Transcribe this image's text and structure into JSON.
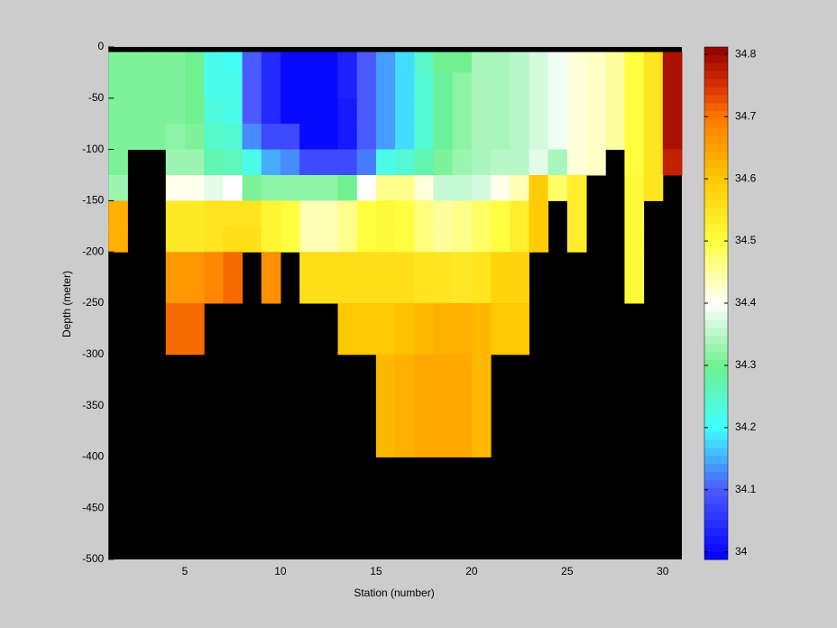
{
  "chart_data": {
    "type": "heatmap",
    "xlabel": "Station (number)",
    "ylabel": "Depth (meter)",
    "xlim": [
      1,
      31
    ],
    "xticks": [
      5,
      10,
      15,
      20,
      25,
      30
    ],
    "ylim": [
      -500,
      0
    ],
    "yticks": [
      -500,
      -450,
      -400,
      -350,
      -300,
      -250,
      -200,
      -150,
      -100,
      -50,
      0
    ],
    "x_edges": [
      1,
      2,
      3,
      4,
      5,
      6,
      7,
      8,
      9,
      10,
      11,
      12,
      13,
      14,
      15,
      16,
      17,
      18,
      19,
      20,
      21,
      22,
      23,
      24,
      25,
      26,
      27,
      28,
      29,
      30,
      31
    ],
    "y_edges": [
      -5,
      -25,
      -50,
      -75,
      -100,
      -125,
      -150,
      -175,
      -200,
      -250,
      -300,
      -350,
      -400,
      -450,
      -500
    ],
    "z": [
      [
        34.31,
        34.31,
        34.31,
        34.31,
        34.3,
        34.22,
        34.21,
        34.1,
        34.04,
        34.0,
        34.0,
        34.0,
        34.03,
        34.1,
        34.14,
        34.18,
        34.25,
        34.3,
        34.3,
        34.34,
        34.34,
        34.35,
        34.37,
        34.39,
        34.42,
        34.43,
        34.45,
        34.5,
        34.55,
        34.79
      ],
      [
        34.31,
        34.31,
        34.31,
        34.31,
        34.3,
        34.22,
        34.22,
        34.1,
        34.04,
        34.0,
        34.0,
        34.0,
        34.03,
        34.1,
        34.14,
        34.18,
        34.24,
        34.29,
        34.32,
        34.34,
        34.34,
        34.35,
        34.37,
        34.39,
        34.42,
        34.43,
        34.45,
        34.5,
        34.55,
        34.79
      ],
      [
        34.31,
        34.31,
        34.31,
        34.31,
        34.3,
        34.23,
        34.22,
        34.1,
        34.04,
        34.0,
        34.0,
        34.0,
        34.02,
        34.1,
        34.14,
        34.18,
        34.24,
        34.29,
        34.32,
        34.34,
        34.34,
        34.35,
        34.37,
        34.39,
        34.42,
        34.43,
        34.45,
        34.5,
        34.55,
        34.79
      ],
      [
        34.31,
        34.31,
        34.31,
        34.32,
        34.31,
        34.25,
        34.24,
        34.13,
        34.08,
        34.08,
        34.0,
        34.0,
        34.02,
        34.1,
        34.14,
        34.18,
        34.24,
        34.29,
        34.32,
        34.34,
        34.34,
        34.35,
        34.37,
        34.39,
        34.42,
        34.43,
        34.45,
        34.5,
        34.55,
        34.79
      ],
      [
        34.31,
        null,
        null,
        34.33,
        34.33,
        34.27,
        34.26,
        34.22,
        34.15,
        34.13,
        34.08,
        34.08,
        34.08,
        34.12,
        34.22,
        34.24,
        34.27,
        34.31,
        34.33,
        34.34,
        34.35,
        34.35,
        34.38,
        34.34,
        34.42,
        34.43,
        null,
        34.5,
        34.55,
        34.77
      ],
      [
        34.33,
        null,
        null,
        34.41,
        34.41,
        34.38,
        34.4,
        34.31,
        34.32,
        34.32,
        34.32,
        34.32,
        34.3,
        34.4,
        34.46,
        34.46,
        34.42,
        34.36,
        34.36,
        34.37,
        34.41,
        34.44,
        34.59,
        34.48,
        34.53,
        null,
        null,
        34.51,
        34.55,
        null
      ],
      [
        34.63,
        null,
        null,
        34.54,
        34.54,
        34.55,
        34.55,
        34.55,
        34.52,
        34.5,
        34.44,
        34.44,
        34.46,
        34.5,
        34.51,
        34.5,
        34.47,
        34.45,
        34.46,
        34.48,
        34.5,
        34.53,
        34.59,
        null,
        34.53,
        null,
        null,
        34.51,
        null,
        null
      ],
      [
        34.63,
        null,
        null,
        34.54,
        34.54,
        34.55,
        34.56,
        34.56,
        34.52,
        34.5,
        34.44,
        34.44,
        34.46,
        34.5,
        34.51,
        34.5,
        34.47,
        34.45,
        34.46,
        34.48,
        34.5,
        34.53,
        34.59,
        null,
        34.53,
        null,
        null,
        34.51,
        null,
        null
      ],
      [
        null,
        null,
        null,
        34.66,
        34.66,
        34.68,
        34.71,
        null,
        34.67,
        null,
        34.56,
        34.56,
        34.56,
        34.56,
        34.56,
        34.56,
        34.55,
        34.55,
        34.54,
        34.55,
        34.58,
        34.58,
        null,
        null,
        null,
        null,
        null,
        34.51,
        null,
        null
      ],
      [
        null,
        null,
        null,
        34.71,
        34.71,
        null,
        null,
        null,
        null,
        null,
        null,
        null,
        34.6,
        34.6,
        34.6,
        34.61,
        34.62,
        34.63,
        34.63,
        34.62,
        34.6,
        34.6,
        null,
        null,
        null,
        null,
        null,
        null,
        null,
        null
      ],
      [
        null,
        null,
        null,
        null,
        null,
        null,
        null,
        null,
        null,
        null,
        null,
        null,
        null,
        null,
        34.62,
        34.63,
        34.64,
        34.64,
        34.64,
        34.62,
        null,
        null,
        null,
        null,
        null,
        null,
        null,
        null,
        null,
        null
      ],
      [
        null,
        null,
        null,
        null,
        null,
        null,
        null,
        null,
        null,
        null,
        null,
        null,
        null,
        null,
        34.62,
        34.63,
        34.64,
        34.64,
        34.64,
        34.62,
        null,
        null,
        null,
        null,
        null,
        null,
        null,
        null,
        null,
        null
      ],
      [
        null,
        null,
        null,
        null,
        null,
        null,
        null,
        null,
        null,
        null,
        null,
        null,
        null,
        null,
        null,
        null,
        null,
        null,
        null,
        null,
        null,
        null,
        null,
        null,
        null,
        null,
        null,
        null,
        null,
        null
      ],
      [
        null,
        null,
        null,
        null,
        null,
        null,
        null,
        null,
        null,
        null,
        null,
        null,
        null,
        null,
        null,
        null,
        null,
        null,
        null,
        null,
        null,
        null,
        null,
        null,
        null,
        null,
        null,
        null,
        null,
        null
      ]
    ],
    "missing_color": "#000000",
    "clim": [
      33.988,
      34.812
    ],
    "colorbar_ticks": [
      34,
      34.1,
      34.2,
      34.3,
      34.4,
      34.5,
      34.6,
      34.7,
      34.8
    ],
    "colormap": [
      {
        "value": 33.988,
        "color": "#0000ff"
      },
      {
        "value": 34.1,
        "color": "#4a5aff"
      },
      {
        "value": 34.2,
        "color": "#40ffff"
      },
      {
        "value": 34.3,
        "color": "#70f090"
      },
      {
        "value": 34.4,
        "color": "#ffffff"
      },
      {
        "value": 34.5,
        "color": "#ffff40"
      },
      {
        "value": 34.6,
        "color": "#ffc800"
      },
      {
        "value": 34.7,
        "color": "#ff7800"
      },
      {
        "value": 34.75,
        "color": "#d83000"
      },
      {
        "value": 34.812,
        "color": "#900000"
      }
    ]
  }
}
